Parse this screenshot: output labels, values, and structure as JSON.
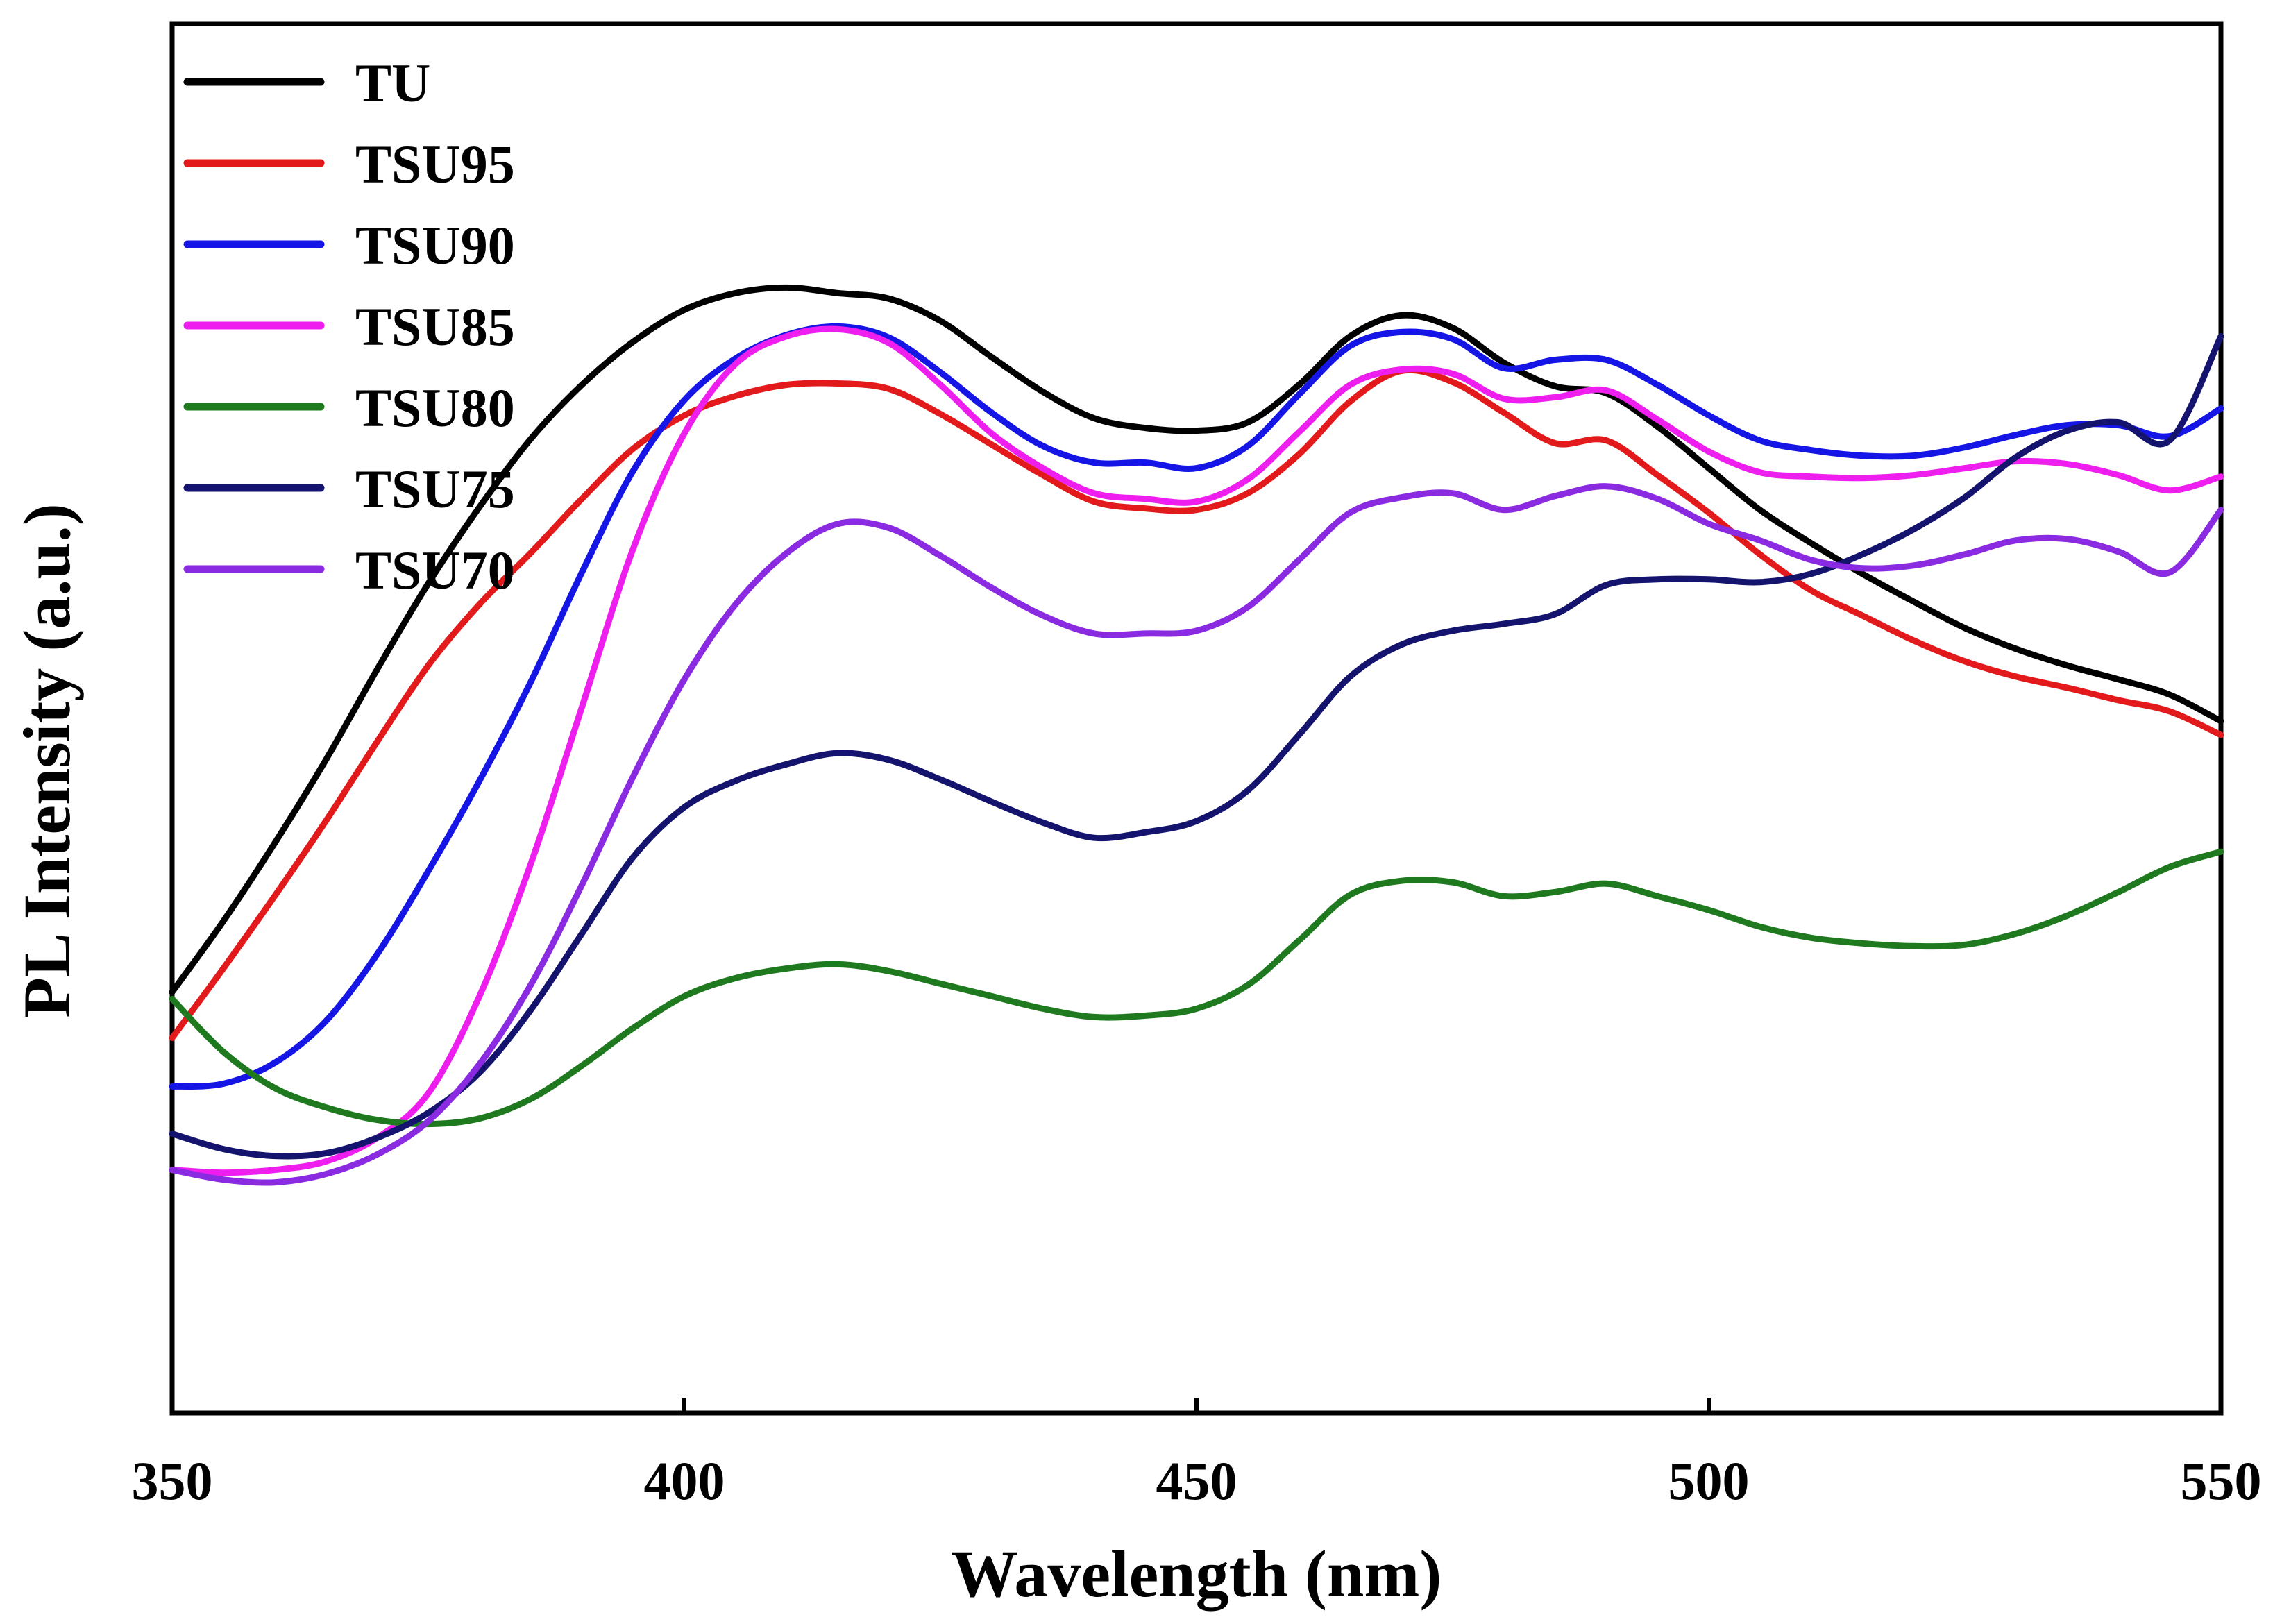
{
  "chart_data": {
    "type": "line",
    "xlabel": "Wavelength (nm)",
    "ylabel": "PL Intensity (a.u.)",
    "xlim": [
      350,
      550
    ],
    "ylim": [
      0,
      1
    ],
    "x_ticks": [
      350,
      400,
      450,
      500,
      550
    ],
    "y_ticks_shown": false,
    "grid": false,
    "legend_position": "top-left",
    "series": [
      {
        "name": "TU",
        "color": "#000000",
        "points": [
          [
            350,
            0.303
          ],
          [
            355,
            0.354
          ],
          [
            360,
            0.41
          ],
          [
            365,
            0.47
          ],
          [
            370,
            0.535
          ],
          [
            375,
            0.597
          ],
          [
            380,
            0.652
          ],
          [
            385,
            0.701
          ],
          [
            390,
            0.74
          ],
          [
            395,
            0.771
          ],
          [
            400,
            0.794
          ],
          [
            405,
            0.806
          ],
          [
            410,
            0.81
          ],
          [
            415,
            0.806
          ],
          [
            420,
            0.802
          ],
          [
            425,
            0.786
          ],
          [
            430,
            0.76
          ],
          [
            435,
            0.735
          ],
          [
            440,
            0.716
          ],
          [
            445,
            0.709
          ],
          [
            450,
            0.707
          ],
          [
            455,
            0.713
          ],
          [
            460,
            0.74
          ],
          [
            465,
            0.775
          ],
          [
            470,
            0.79
          ],
          [
            475,
            0.781
          ],
          [
            480,
            0.756
          ],
          [
            485,
            0.739
          ],
          [
            490,
            0.734
          ],
          [
            495,
            0.71
          ],
          [
            500,
            0.68
          ],
          [
            505,
            0.65
          ],
          [
            510,
            0.626
          ],
          [
            515,
            0.604
          ],
          [
            520,
            0.584
          ],
          [
            525,
            0.565
          ],
          [
            530,
            0.55
          ],
          [
            535,
            0.538
          ],
          [
            540,
            0.528
          ],
          [
            545,
            0.517
          ],
          [
            550,
            0.498
          ]
        ]
      },
      {
        "name": "TSU95",
        "color": "#e31a1c",
        "points": [
          [
            350,
            0.27
          ],
          [
            355,
            0.32
          ],
          [
            360,
            0.372
          ],
          [
            365,
            0.426
          ],
          [
            370,
            0.483
          ],
          [
            375,
            0.538
          ],
          [
            380,
            0.582
          ],
          [
            385,
            0.619
          ],
          [
            390,
            0.658
          ],
          [
            395,
            0.694
          ],
          [
            400,
            0.718
          ],
          [
            405,
            0.732
          ],
          [
            410,
            0.74
          ],
          [
            415,
            0.741
          ],
          [
            420,
            0.737
          ],
          [
            425,
            0.719
          ],
          [
            430,
            0.697
          ],
          [
            435,
            0.675
          ],
          [
            440,
            0.656
          ],
          [
            445,
            0.651
          ],
          [
            450,
            0.65
          ],
          [
            455,
            0.662
          ],
          [
            460,
            0.69
          ],
          [
            465,
            0.728
          ],
          [
            470,
            0.75
          ],
          [
            475,
            0.742
          ],
          [
            480,
            0.72
          ],
          [
            485,
            0.698
          ],
          [
            490,
            0.7
          ],
          [
            495,
            0.675
          ],
          [
            500,
            0.648
          ],
          [
            505,
            0.618
          ],
          [
            510,
            0.592
          ],
          [
            515,
            0.574
          ],
          [
            520,
            0.556
          ],
          [
            525,
            0.541
          ],
          [
            530,
            0.53
          ],
          [
            535,
            0.522
          ],
          [
            540,
            0.513
          ],
          [
            545,
            0.505
          ],
          [
            550,
            0.488
          ]
        ]
      },
      {
        "name": "TSU90",
        "color": "#1515e6",
        "points": [
          [
            350,
            0.235
          ],
          [
            355,
            0.237
          ],
          [
            360,
            0.252
          ],
          [
            365,
            0.282
          ],
          [
            370,
            0.33
          ],
          [
            375,
            0.39
          ],
          [
            380,
            0.455
          ],
          [
            385,
            0.526
          ],
          [
            390,
            0.605
          ],
          [
            395,
            0.678
          ],
          [
            400,
            0.729
          ],
          [
            405,
            0.759
          ],
          [
            410,
            0.776
          ],
          [
            415,
            0.782
          ],
          [
            420,
            0.774
          ],
          [
            425,
            0.749
          ],
          [
            430,
            0.72
          ],
          [
            435,
            0.696
          ],
          [
            440,
            0.684
          ],
          [
            445,
            0.684
          ],
          [
            450,
            0.68
          ],
          [
            455,
            0.696
          ],
          [
            460,
            0.733
          ],
          [
            465,
            0.768
          ],
          [
            470,
            0.778
          ],
          [
            475,
            0.773
          ],
          [
            480,
            0.752
          ],
          [
            485,
            0.758
          ],
          [
            490,
            0.758
          ],
          [
            495,
            0.74
          ],
          [
            500,
            0.718
          ],
          [
            505,
            0.7
          ],
          [
            510,
            0.693
          ],
          [
            515,
            0.689
          ],
          [
            520,
            0.689
          ],
          [
            525,
            0.695
          ],
          [
            530,
            0.704
          ],
          [
            535,
            0.711
          ],
          [
            540,
            0.711
          ],
          [
            545,
            0.703
          ],
          [
            550,
            0.723
          ]
        ]
      },
      {
        "name": "TSU85",
        "color": "#ee1fee",
        "points": [
          [
            350,
            0.175
          ],
          [
            355,
            0.173
          ],
          [
            360,
            0.175
          ],
          [
            365,
            0.181
          ],
          [
            370,
            0.198
          ],
          [
            375,
            0.23
          ],
          [
            380,
            0.3
          ],
          [
            385,
            0.395
          ],
          [
            390,
            0.508
          ],
          [
            395,
            0.622
          ],
          [
            400,
            0.705
          ],
          [
            405,
            0.755
          ],
          [
            410,
            0.775
          ],
          [
            415,
            0.78
          ],
          [
            420,
            0.77
          ],
          [
            425,
            0.74
          ],
          [
            430,
            0.705
          ],
          [
            435,
            0.68
          ],
          [
            440,
            0.662
          ],
          [
            445,
            0.658
          ],
          [
            450,
            0.656
          ],
          [
            455,
            0.672
          ],
          [
            460,
            0.706
          ],
          [
            465,
            0.74
          ],
          [
            470,
            0.751
          ],
          [
            475,
            0.748
          ],
          [
            480,
            0.73
          ],
          [
            485,
            0.731
          ],
          [
            490,
            0.736
          ],
          [
            495,
            0.715
          ],
          [
            500,
            0.692
          ],
          [
            505,
            0.677
          ],
          [
            510,
            0.674
          ],
          [
            515,
            0.673
          ],
          [
            520,
            0.675
          ],
          [
            525,
            0.68
          ],
          [
            530,
            0.685
          ],
          [
            535,
            0.683
          ],
          [
            540,
            0.675
          ],
          [
            545,
            0.664
          ],
          [
            550,
            0.674
          ]
        ]
      },
      {
        "name": "TSU80",
        "color": "#1f7a1f",
        "points": [
          [
            350,
            0.298
          ],
          [
            355,
            0.26
          ],
          [
            360,
            0.234
          ],
          [
            365,
            0.22
          ],
          [
            370,
            0.211
          ],
          [
            375,
            0.208
          ],
          [
            380,
            0.212
          ],
          [
            385,
            0.226
          ],
          [
            390,
            0.25
          ],
          [
            395,
            0.277
          ],
          [
            400,
            0.3
          ],
          [
            405,
            0.313
          ],
          [
            410,
            0.32
          ],
          [
            415,
            0.323
          ],
          [
            420,
            0.318
          ],
          [
            425,
            0.309
          ],
          [
            430,
            0.3
          ],
          [
            435,
            0.291
          ],
          [
            440,
            0.285
          ],
          [
            445,
            0.286
          ],
          [
            450,
            0.291
          ],
          [
            455,
            0.308
          ],
          [
            460,
            0.34
          ],
          [
            465,
            0.373
          ],
          [
            470,
            0.383
          ],
          [
            475,
            0.382
          ],
          [
            480,
            0.372
          ],
          [
            485,
            0.375
          ],
          [
            490,
            0.381
          ],
          [
            495,
            0.372
          ],
          [
            500,
            0.362
          ],
          [
            505,
            0.35
          ],
          [
            510,
            0.342
          ],
          [
            515,
            0.338
          ],
          [
            520,
            0.336
          ],
          [
            525,
            0.337
          ],
          [
            530,
            0.345
          ],
          [
            535,
            0.358
          ],
          [
            540,
            0.375
          ],
          [
            545,
            0.393
          ],
          [
            550,
            0.404
          ]
        ]
      },
      {
        "name": "TSU75",
        "color": "#14146e",
        "points": [
          [
            350,
            0.201
          ],
          [
            355,
            0.19
          ],
          [
            360,
            0.185
          ],
          [
            365,
            0.187
          ],
          [
            370,
            0.198
          ],
          [
            375,
            0.216
          ],
          [
            380,
            0.245
          ],
          [
            385,
            0.29
          ],
          [
            390,
            0.345
          ],
          [
            395,
            0.4
          ],
          [
            400,
            0.436
          ],
          [
            405,
            0.455
          ],
          [
            410,
            0.467
          ],
          [
            415,
            0.475
          ],
          [
            420,
            0.47
          ],
          [
            425,
            0.456
          ],
          [
            430,
            0.44
          ],
          [
            435,
            0.425
          ],
          [
            440,
            0.414
          ],
          [
            445,
            0.418
          ],
          [
            450,
            0.426
          ],
          [
            455,
            0.448
          ],
          [
            460,
            0.488
          ],
          [
            465,
            0.53
          ],
          [
            470,
            0.553
          ],
          [
            475,
            0.563
          ],
          [
            480,
            0.568
          ],
          [
            485,
            0.575
          ],
          [
            490,
            0.596
          ],
          [
            495,
            0.6
          ],
          [
            500,
            0.6
          ],
          [
            505,
            0.598
          ],
          [
            510,
            0.604
          ],
          [
            515,
            0.618
          ],
          [
            520,
            0.636
          ],
          [
            525,
            0.659
          ],
          [
            530,
            0.688
          ],
          [
            535,
            0.707
          ],
          [
            540,
            0.713
          ],
          [
            545,
            0.7
          ],
          [
            550,
            0.775
          ]
        ]
      },
      {
        "name": "TSU70",
        "color": "#8a2be2",
        "points": [
          [
            350,
            0.175
          ],
          [
            355,
            0.168
          ],
          [
            360,
            0.166
          ],
          [
            365,
            0.172
          ],
          [
            370,
            0.186
          ],
          [
            375,
            0.21
          ],
          [
            380,
            0.251
          ],
          [
            385,
            0.308
          ],
          [
            390,
            0.38
          ],
          [
            395,
            0.458
          ],
          [
            400,
            0.528
          ],
          [
            405,
            0.582
          ],
          [
            410,
            0.619
          ],
          [
            415,
            0.64
          ],
          [
            420,
            0.637
          ],
          [
            425,
            0.617
          ],
          [
            430,
            0.594
          ],
          [
            435,
            0.574
          ],
          [
            440,
            0.561
          ],
          [
            445,
            0.561
          ],
          [
            450,
            0.563
          ],
          [
            455,
            0.58
          ],
          [
            460,
            0.614
          ],
          [
            465,
            0.648
          ],
          [
            470,
            0.659
          ],
          [
            475,
            0.662
          ],
          [
            480,
            0.65
          ],
          [
            485,
            0.66
          ],
          [
            490,
            0.667
          ],
          [
            495,
            0.658
          ],
          [
            500,
            0.64
          ],
          [
            505,
            0.628
          ],
          [
            510,
            0.614
          ],
          [
            515,
            0.608
          ],
          [
            520,
            0.61
          ],
          [
            525,
            0.618
          ],
          [
            530,
            0.628
          ],
          [
            535,
            0.629
          ],
          [
            540,
            0.62
          ],
          [
            545,
            0.605
          ],
          [
            550,
            0.65
          ]
        ]
      }
    ]
  }
}
